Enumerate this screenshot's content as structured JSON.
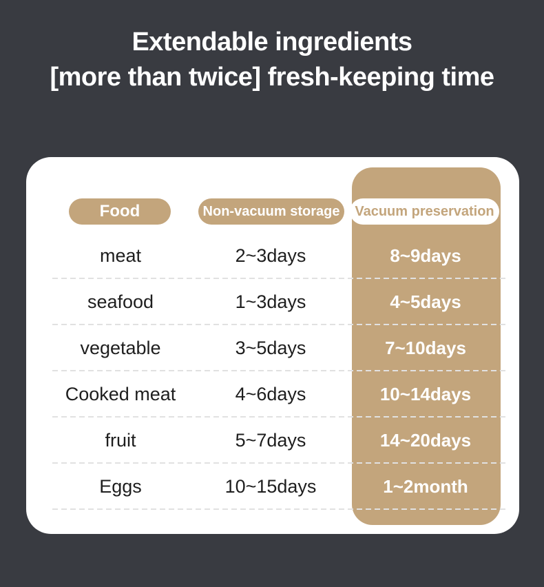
{
  "page": {
    "background_color": "#393b41",
    "card_color": "#ffffff",
    "accent_color": "#c3a57c",
    "text_color": "#1e1e1e"
  },
  "title": {
    "line1": "Extendable ingredients",
    "line2": "[more than twice] fresh-keeping time"
  },
  "table": {
    "headers": [
      {
        "label": "Food"
      },
      {
        "label": "Non-vacuum storage"
      },
      {
        "label": "Vacuum preservation"
      }
    ],
    "rows": [
      {
        "food": "meat",
        "non_vacuum": "2~3days",
        "vacuum": "8~9days"
      },
      {
        "food": "seafood",
        "non_vacuum": "1~3days",
        "vacuum": "4~5days"
      },
      {
        "food": "vegetable",
        "non_vacuum": "3~5days",
        "vacuum": "7~10days"
      },
      {
        "food": "Cooked meat",
        "non_vacuum": "4~6days",
        "vacuum": "10~14days"
      },
      {
        "food": "fruit",
        "non_vacuum": "5~7days",
        "vacuum": "14~20days"
      },
      {
        "food": "Eggs",
        "non_vacuum": "10~15days",
        "vacuum": "1~2month"
      }
    ]
  },
  "chart_data": {
    "type": "table",
    "title": "Extendable ingredients [more than twice] fresh-keeping time",
    "columns": [
      "Food",
      "Non-vacuum storage",
      "Vacuum preservation"
    ],
    "rows": [
      [
        "meat",
        "2~3days",
        "8~9days"
      ],
      [
        "seafood",
        "1~3days",
        "4~5days"
      ],
      [
        "vegetable",
        "3~5days",
        "7~10days"
      ],
      [
        "Cooked meat",
        "4~6days",
        "10~14days"
      ],
      [
        "fruit",
        "5~7days",
        "14~20days"
      ],
      [
        "Eggs",
        "10~15days",
        "1~2month"
      ]
    ]
  }
}
